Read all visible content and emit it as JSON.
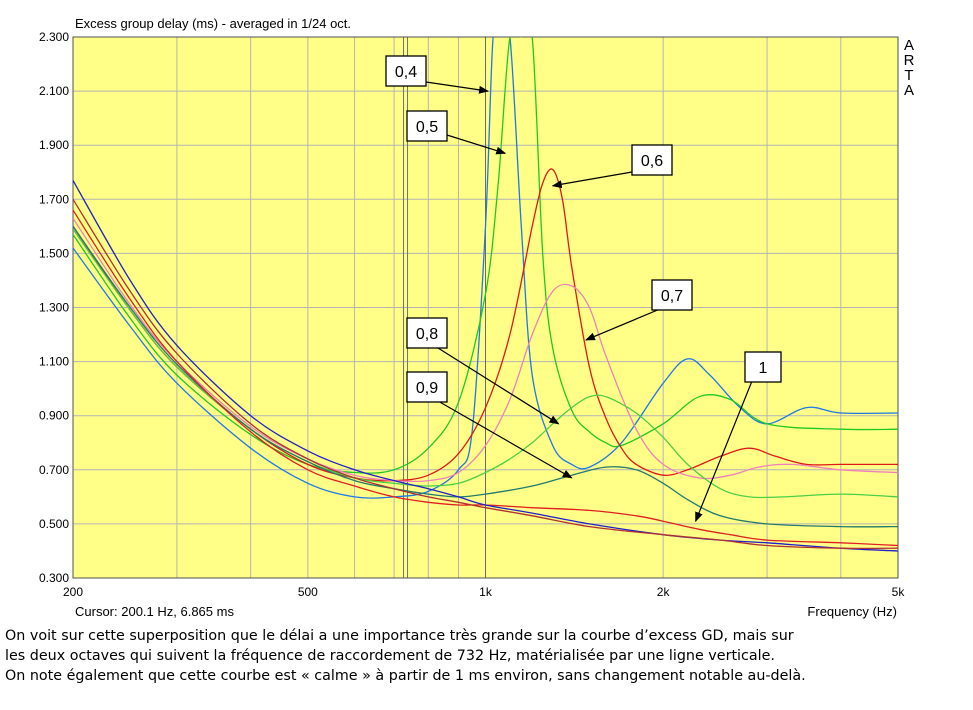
{
  "chart_data": {
    "type": "line",
    "title": "Excess group delay (ms) - averaged in 1/24 oct.",
    "xlabel": "Frequency (Hz)",
    "ylabel": "",
    "x_scale": "log",
    "xlim": [
      200,
      5000
    ],
    "ylim": [
      0.3,
      2.3
    ],
    "grid": true,
    "y_ticks": [
      "0.300",
      "0.500",
      "0.700",
      "0.900",
      "1.100",
      "1.300",
      "1.500",
      "1.700",
      "1.900",
      "2.100",
      "2.300"
    ],
    "y_tick_values": [
      0.3,
      0.5,
      0.7,
      0.9,
      1.1,
      1.3,
      1.5,
      1.7,
      1.9,
      2.1,
      2.3
    ],
    "x_ticks": [
      "200",
      "500",
      "1k",
      "2k",
      "5k"
    ],
    "x_tick_values": [
      200,
      500,
      1000,
      2000,
      5000
    ],
    "cursor_text": "Cursor: 200.1 Hz, 6.865 ms",
    "brand": "ARTA",
    "crossover_marker_hz": 732,
    "series": [
      {
        "label": "0,4",
        "color": "#1e78e6",
        "x": [
          200,
          250,
          300,
          400,
          500,
          600,
          700,
          800,
          900,
          950,
          1000,
          1030,
          1060,
          1100,
          1150,
          1200,
          1300,
          1400,
          1500,
          1700,
          2000,
          2200,
          2400,
          2700,
          3000,
          3500,
          4000,
          5000
        ],
        "y": [
          1.52,
          1.23,
          1.02,
          0.78,
          0.65,
          0.6,
          0.6,
          0.62,
          0.7,
          0.85,
          1.6,
          2.3,
          2.3,
          2.3,
          1.6,
          1.05,
          0.79,
          0.72,
          0.71,
          0.8,
          1.02,
          1.11,
          1.05,
          0.93,
          0.87,
          0.93,
          0.91,
          0.91
        ]
      },
      {
        "label": "0,5",
        "color": "#22c822",
        "x": [
          200,
          250,
          300,
          400,
          500,
          600,
          700,
          800,
          900,
          1000,
          1050,
          1100,
          1150,
          1200,
          1250,
          1300,
          1400,
          1500,
          1600,
          1700,
          2000,
          2300,
          2600,
          3000,
          4000,
          5000
        ],
        "y": [
          1.57,
          1.26,
          1.05,
          0.83,
          0.72,
          0.69,
          0.7,
          0.78,
          0.95,
          1.35,
          1.75,
          2.3,
          2.3,
          2.3,
          1.5,
          1.15,
          0.92,
          0.84,
          0.8,
          0.79,
          0.87,
          0.97,
          0.96,
          0.87,
          0.85,
          0.85
        ]
      },
      {
        "label": "0,6",
        "color": "#e01818",
        "x": [
          200,
          250,
          300,
          400,
          500,
          600,
          700,
          800,
          900,
          1000,
          1100,
          1200,
          1250,
          1300,
          1350,
          1400,
          1500,
          1600,
          1700,
          1800,
          2000,
          2200,
          2500,
          2800,
          3100,
          3500,
          4000,
          5000
        ],
        "y": [
          1.6,
          1.29,
          1.08,
          0.85,
          0.72,
          0.67,
          0.66,
          0.68,
          0.76,
          0.93,
          1.2,
          1.6,
          1.76,
          1.81,
          1.7,
          1.45,
          1.08,
          0.89,
          0.78,
          0.72,
          0.68,
          0.7,
          0.75,
          0.78,
          0.75,
          0.72,
          0.72,
          0.72
        ]
      },
      {
        "label": "0,7",
        "color": "#f080b8",
        "x": [
          200,
          250,
          300,
          400,
          500,
          600,
          700,
          800,
          900,
          1000,
          1100,
          1200,
          1300,
          1400,
          1500,
          1600,
          1800,
          2000,
          2300,
          2600,
          2900,
          3300,
          4000,
          5000
        ],
        "y": [
          1.63,
          1.31,
          1.1,
          0.86,
          0.74,
          0.68,
          0.66,
          0.66,
          0.69,
          0.79,
          0.96,
          1.2,
          1.36,
          1.38,
          1.3,
          1.12,
          0.85,
          0.72,
          0.67,
          0.68,
          0.71,
          0.72,
          0.7,
          0.69
        ]
      },
      {
        "label": "0,8",
        "color": "#4ccf44",
        "x": [
          200,
          250,
          300,
          400,
          500,
          600,
          700,
          800,
          900,
          1000,
          1100,
          1200,
          1300,
          1400,
          1500,
          1600,
          1800,
          2000,
          2200,
          2500,
          2800,
          3200,
          4000,
          5000
        ],
        "y": [
          1.59,
          1.29,
          1.08,
          0.85,
          0.73,
          0.67,
          0.65,
          0.64,
          0.65,
          0.69,
          0.74,
          0.8,
          0.87,
          0.93,
          0.97,
          0.97,
          0.91,
          0.82,
          0.72,
          0.63,
          0.6,
          0.6,
          0.61,
          0.6
        ]
      },
      {
        "label": "0,9",
        "color": "#237a6c",
        "x": [
          200,
          250,
          300,
          400,
          500,
          600,
          700,
          800,
          900,
          1000,
          1200,
          1400,
          1600,
          1800,
          2000,
          2200,
          2500,
          3000,
          4000,
          5000
        ],
        "y": [
          1.6,
          1.3,
          1.09,
          0.85,
          0.73,
          0.66,
          0.63,
          0.61,
          0.6,
          0.61,
          0.64,
          0.68,
          0.71,
          0.7,
          0.65,
          0.59,
          0.53,
          0.5,
          0.49,
          0.49
        ]
      },
      {
        "label": "1",
        "color": "#e02020",
        "x": [
          200,
          250,
          300,
          400,
          500,
          600,
          700,
          800,
          900,
          1000,
          1200,
          1500,
          1800,
          2000,
          2300,
          2600,
          3000,
          4000,
          5000
        ],
        "y": [
          1.66,
          1.33,
          1.1,
          0.84,
          0.7,
          0.64,
          0.6,
          0.58,
          0.57,
          0.57,
          0.56,
          0.55,
          0.53,
          0.51,
          0.48,
          0.46,
          0.44,
          0.43,
          0.42
        ]
      },
      {
        "label": "",
        "color": "#2020c8",
        "x": [
          200,
          250,
          300,
          400,
          500,
          600,
          700,
          800,
          900,
          1000,
          1200,
          1500,
          2000,
          2500,
          3000,
          4000,
          5000
        ],
        "y": [
          1.77,
          1.4,
          1.16,
          0.9,
          0.77,
          0.7,
          0.66,
          0.63,
          0.6,
          0.57,
          0.54,
          0.5,
          0.46,
          0.44,
          0.43,
          0.41,
          0.4
        ]
      },
      {
        "label": "",
        "color": "#b03030",
        "x": [
          200,
          250,
          300,
          400,
          500,
          600,
          700,
          800,
          900,
          1000,
          1200,
          1500,
          2000,
          2500,
          3000,
          4000,
          5000
        ],
        "y": [
          1.7,
          1.36,
          1.13,
          0.87,
          0.74,
          0.67,
          0.63,
          0.6,
          0.58,
          0.56,
          0.53,
          0.49,
          0.46,
          0.44,
          0.42,
          0.41,
          0.41
        ]
      }
    ],
    "callouts": [
      {
        "label": "0,4",
        "series": 0,
        "target_hz": 1010,
        "target_ms": 2.1
      },
      {
        "label": "0,5",
        "series": 1,
        "target_hz": 1080,
        "target_ms": 1.87
      },
      {
        "label": "0,6",
        "series": 2,
        "target_hz": 1300,
        "target_ms": 1.75
      },
      {
        "label": "0,7",
        "series": 3,
        "target_hz": 1480,
        "target_ms": 1.18
      },
      {
        "label": "0,8",
        "series": 4,
        "target_hz": 1330,
        "target_ms": 0.87
      },
      {
        "label": "0,9",
        "series": 5,
        "target_hz": 1400,
        "target_ms": 0.67
      },
      {
        "label": "1",
        "series": 6,
        "target_hz": 2270,
        "target_ms": 0.51
      }
    ]
  },
  "caption": [
    "On voit sur cette superposition que le délai a une importance très grande sur la courbe d’excess GD, mais sur",
    "les deux octaves qui suivent la fréquence de raccordement de 732 Hz, matérialisée par une ligne verticale.",
    "On note également que cette courbe est « calme » à partir de 1 ms environ, sans changement notable au-delà."
  ]
}
